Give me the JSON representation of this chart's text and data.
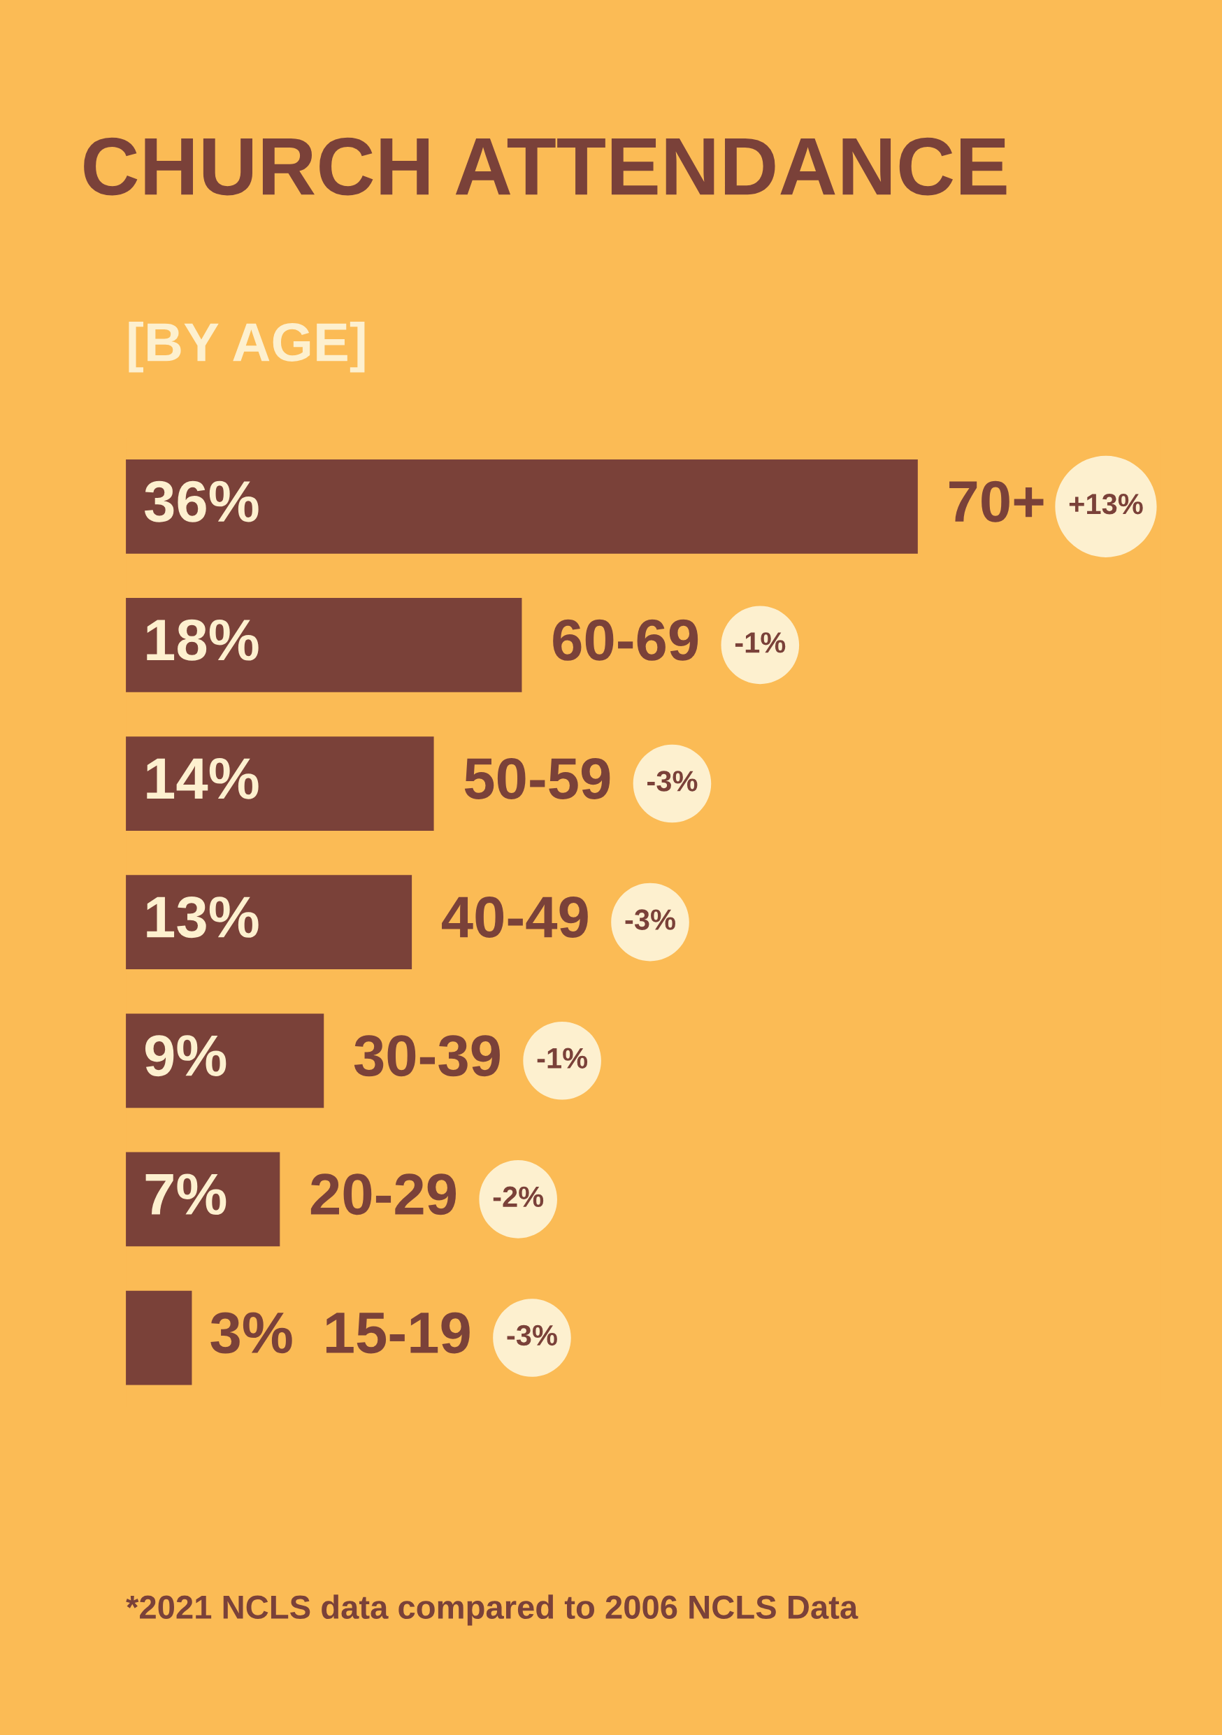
{
  "chart_data": {
    "type": "bar",
    "orientation": "horizontal",
    "title": "CHURCH ATTENDANCE",
    "subtitle": "[BY AGE]",
    "categories": [
      "70+",
      "60-69",
      "50-59",
      "40-49",
      "30-39",
      "20-29",
      "15-19"
    ],
    "series": [
      {
        "color": "#7a4139",
        "values": [
          36,
          18,
          14,
          13,
          9,
          7,
          3
        ],
        "value_labels": [
          "36%",
          "18%",
          "14%",
          "13%",
          "9%",
          "7%",
          "3%"
        ]
      }
    ],
    "annotations": [
      "+13%",
      "-1%",
      "-3%",
      "-3%",
      "-1%",
      "-2%",
      "-3%",
      "*2021 NCLS data compared to 2006 NCLS Data"
    ],
    "legend": false
  }
}
